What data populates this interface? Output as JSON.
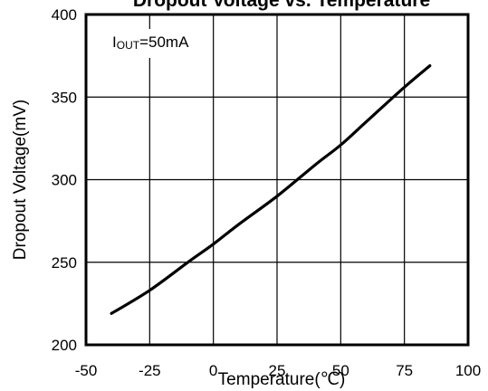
{
  "chart_data": {
    "type": "line",
    "title": "Dropout Voltage vs. Temperature",
    "xlabel": "Temperature(℃)",
    "ylabel": "Dropout Voltage(mV)",
    "xlim": [
      -50,
      100
    ],
    "ylim": [
      200,
      400
    ],
    "x_ticks": [
      "-50",
      "-25",
      "0",
      "25",
      "50",
      "75",
      "100"
    ],
    "y_ticks": [
      "200",
      "250",
      "300",
      "350",
      "400"
    ],
    "grid": true,
    "annotation": "Iₒᵤₜ=50mA",
    "annotation_parts": {
      "main": "I",
      "sub": "OUT",
      "rest": "=50mA"
    },
    "series": [
      {
        "x": [
          -40,
          -25,
          -10,
          0,
          10,
          25,
          40,
          50,
          60,
          75,
          85
        ],
        "values": [
          219,
          233,
          250,
          261,
          273,
          290,
          309,
          321,
          335,
          356,
          369
        ]
      }
    ]
  }
}
